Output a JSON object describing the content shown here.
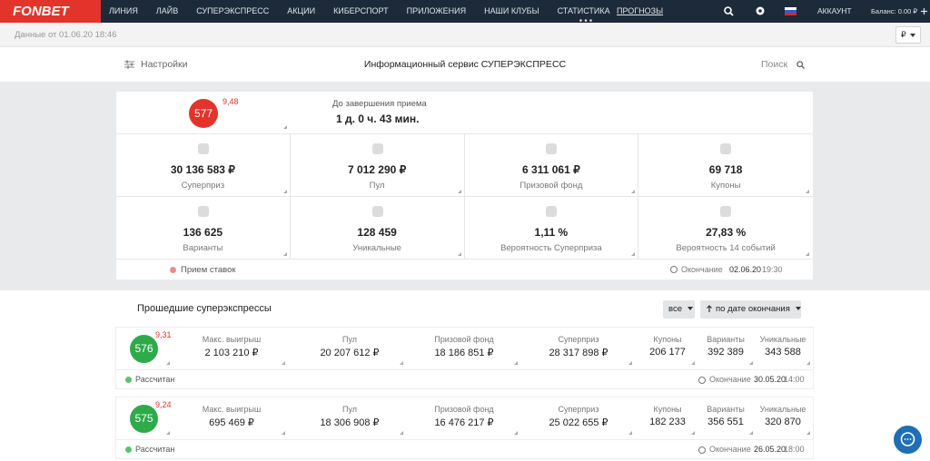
{
  "nav": {
    "logo": "FONBET",
    "items": [
      "ЛИНИЯ",
      "ЛАЙВ",
      "СУПЕРЭКСПРЕСС",
      "АКЦИИ",
      "КИБЕРСПОРТ",
      "ПРИЛОЖЕНИЯ",
      "НАШИ КЛУБЫ",
      "СТАТИСТИКА"
    ],
    "forecasts": "ПРОГНОЗЫ",
    "account": "АККАУНТ",
    "balance_label": "Баланс:",
    "balance": "0.00 ₽"
  },
  "subbar": {
    "data_date": "Данные от 01.06.20 18:46",
    "currency": "₽"
  },
  "toolbar": {
    "settings": "Настройки",
    "title": "Информационный сервис СУПЕРЭКСПРЕСС",
    "search": "Поиск"
  },
  "current": {
    "number": "577",
    "coef": "9,48",
    "deadline_label": "До завершения приема",
    "deadline": "1 д. 0 ч. 43 мин.",
    "stats": [
      {
        "value": "30 136 583 ₽",
        "label": "Суперприз"
      },
      {
        "value": "7 012 290 ₽",
        "label": "Пул"
      },
      {
        "value": "6 311 061 ₽",
        "label": "Призовой фонд"
      },
      {
        "value": "69 718",
        "label": "Купоны"
      },
      {
        "value": "136 625",
        "label": "Варианты"
      },
      {
        "value": "128 459",
        "label": "Уникальные"
      },
      {
        "value": "1,11 %",
        "label": "Вероятность Суперприза"
      },
      {
        "value": "27,83 %",
        "label": "Вероятность 14 событий"
      }
    ],
    "status": "Прием ставок",
    "end_label": "Окончание",
    "end_date": "02.06.20",
    "end_time": "19:30"
  },
  "past": {
    "title": "Прошедшие суперэкспрессы",
    "filter": "все",
    "sort": "по дате окончания",
    "columns": [
      "Макс. выигрыш",
      "Пул",
      "Призовой фонд",
      "Суперприз",
      "Купоны",
      "Варианты",
      "Уникальные"
    ],
    "items": [
      {
        "number": "576",
        "coef": "9,31",
        "values": [
          "2 103 210 ₽",
          "20 207 612 ₽",
          "18 186 851 ₽",
          "28 317 898 ₽",
          "206 177",
          "392 389",
          "343 588"
        ],
        "status": "Рассчитан",
        "end_label": "Окончание",
        "end_date": "30.05.20",
        "end_time": "14:00"
      },
      {
        "number": "575",
        "coef": "9,24",
        "values": [
          "695 469 ₽",
          "18 306 908 ₽",
          "16 476 217 ₽",
          "25 022 655 ₽",
          "182 233",
          "356 551",
          "320 870"
        ],
        "status": "Рассчитан",
        "end_label": "Окончание",
        "end_date": "26.05.20",
        "end_time": "18:00"
      }
    ]
  }
}
